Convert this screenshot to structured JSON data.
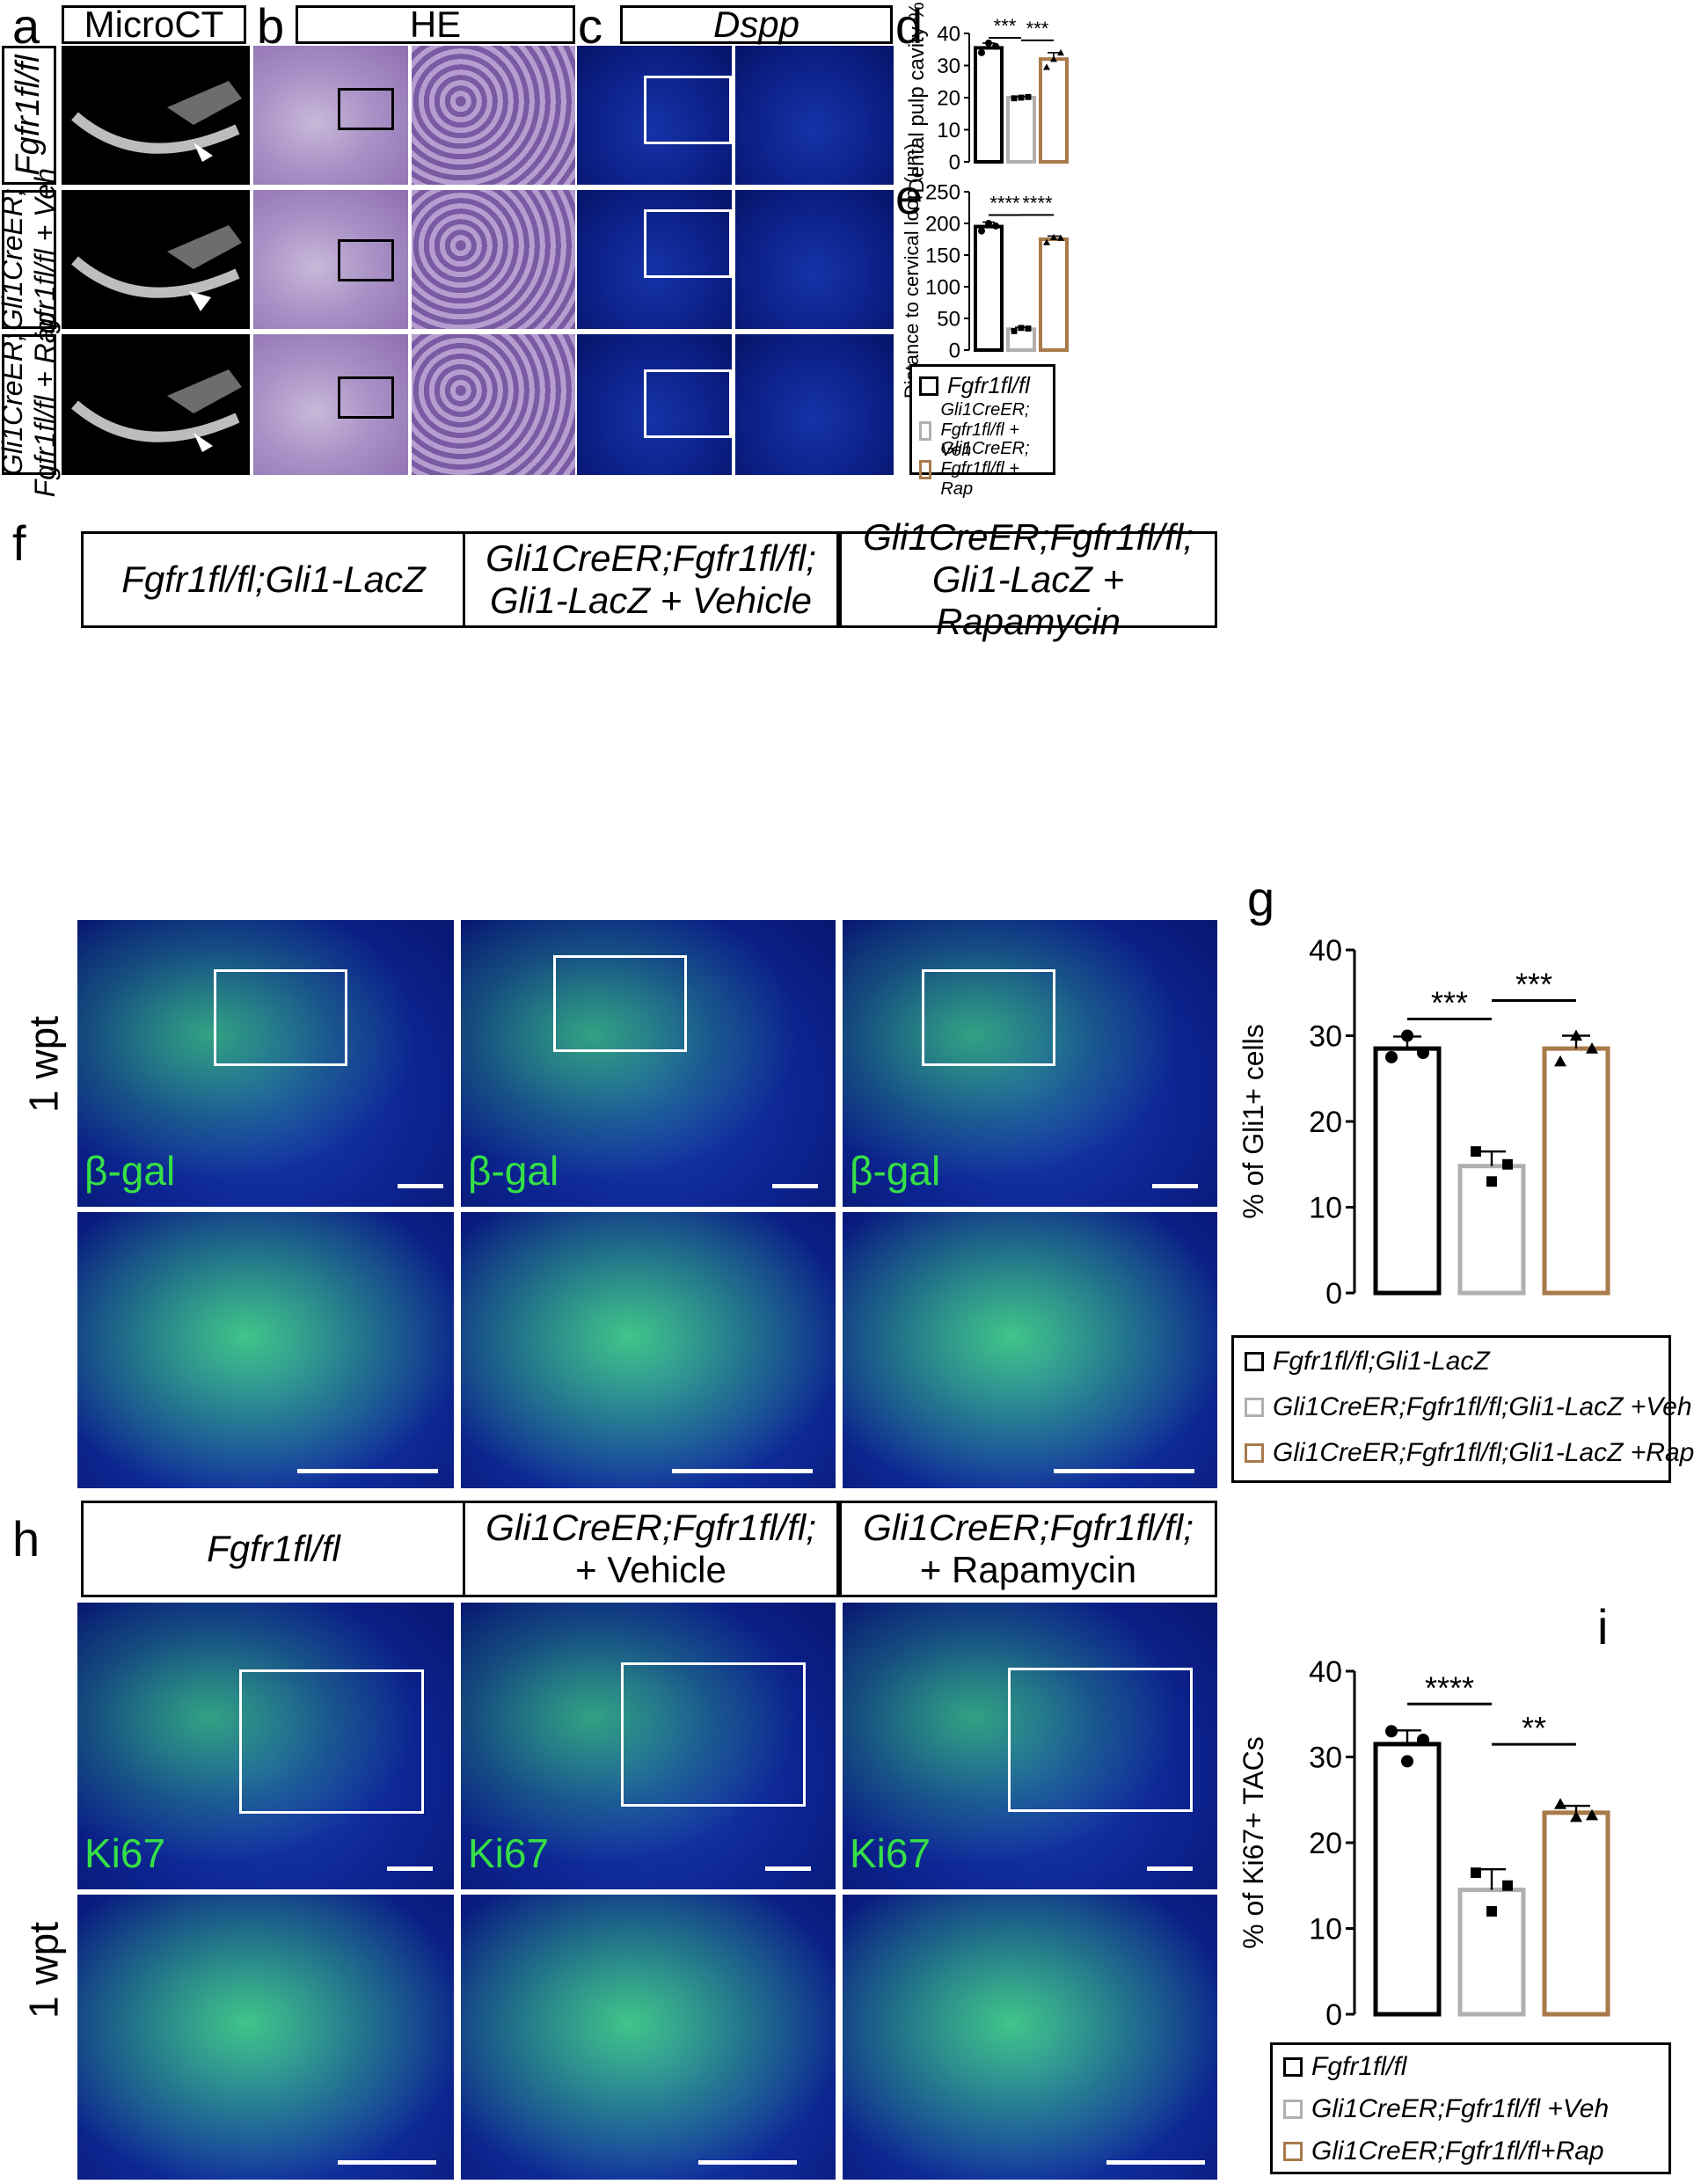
{
  "panels": {
    "a": "a",
    "b": "b",
    "c": "c",
    "d": "d",
    "e": "e",
    "f": "f",
    "g": "g",
    "h": "h",
    "i": "i"
  },
  "headers": {
    "microct": "MicroCT",
    "he": "HE",
    "dspp": "Dspp",
    "f1": "Fgfr1fl/fl;Gli1-LacZ",
    "f2_l1": "Gli1CreER;Fgfr1fl/fl;",
    "f2_l2": "Gli1-LacZ + Vehicle",
    "f3_l1": "Gli1CreER;Fgfr1fl/fl;",
    "f3_l2": "Gli1-LacZ + Rapamycin",
    "h1": "Fgfr1fl/fl",
    "h2_l1": "Gli1CreER;Fgfr1fl/fl;",
    "h2_l2": "+ Vehicle",
    "h3_l1": "Gli1CreER;Fgfr1fl/fl;",
    "h3_l2": "+ Rapamycin"
  },
  "row_labels": {
    "r1": "Fgfr1fl/fl",
    "r2_l1": "Gli1CreER;",
    "r2_l2": "Fgfr1fl/fl + Veh",
    "r3_l1": "Gli1CreER;",
    "r3_l2": "Fgfr1fl/fl + Rap",
    "wpt_f": "1 wpt",
    "wpt_h": "1 wpt"
  },
  "channels": {
    "bgal": "β-gal",
    "ki67": "Ki67"
  },
  "colors": {
    "control": "#000000",
    "veh": "#b0b0b0",
    "rap": "#a87a4a",
    "arrow_yellow": "#ffe500",
    "nuclear_green": "#35e046"
  },
  "legends": {
    "de": [
      "Fgfr1fl/fl",
      "Gli1CreER; Fgfr1fl/fl + Veh",
      "Gli1CreER; Fgfr1fl/fl + Rap"
    ],
    "g": [
      "Fgfr1fl/fl;Gli1-LacZ",
      "Gli1CreER;Fgfr1fl/fl;Gli1-LacZ +Veh",
      "Gli1CreER;Fgfr1fl/fl;Gli1-LacZ +Rap"
    ],
    "i": [
      "Fgfr1fl/fl",
      "Gli1CreER;Fgfr1fl/fl +Veh",
      "Gli1CreER;Fgfr1fl/fl+Rap"
    ]
  },
  "chart_data": [
    {
      "panel": "d",
      "type": "bar",
      "ylabel": "Dental pulp cavity %",
      "ylim": [
        0,
        40
      ],
      "yticks": [
        0,
        10,
        20,
        30,
        40
      ],
      "categories": [
        "Fgfr1fl/fl",
        "Gli1CreER; Fgfr1fl/fl + Veh",
        "Gli1CreER; Fgfr1fl/fl + Rap"
      ],
      "values": [
        35.5,
        20,
        32
      ],
      "errors": [
        1.5,
        0.4,
        2.0
      ],
      "points": [
        [
          34,
          37,
          36
        ],
        [
          19.8,
          20,
          20.2
        ],
        [
          29.5,
          32,
          34
        ]
      ],
      "significance": [
        "***",
        "***"
      ]
    },
    {
      "panel": "e",
      "type": "bar",
      "ylabel": "Distance to cervical loop (μm)",
      "ylim": [
        0,
        250
      ],
      "yticks": [
        0,
        50,
        100,
        150,
        200,
        250
      ],
      "categories": [
        "Fgfr1fl/fl",
        "Gli1CreER; Fgfr1fl/fl + Veh",
        "Gli1CreER; Fgfr1fl/fl + Rap"
      ],
      "values": [
        195,
        33,
        175
      ],
      "errors": [
        7,
        3,
        5
      ],
      "points": [
        [
          188,
          200,
          196
        ],
        [
          30,
          35,
          34
        ],
        [
          170,
          178,
          177
        ]
      ],
      "significance": [
        "****",
        "****"
      ]
    },
    {
      "panel": "g",
      "type": "bar",
      "ylabel": "% of Gli1+ cells",
      "ylim": [
        0,
        40
      ],
      "yticks": [
        0,
        10,
        20,
        30,
        40
      ],
      "categories": [
        "Fgfr1fl/fl;Gli1-LacZ",
        "Gli1CreER;Fgfr1fl/fl;Gli1-LacZ +Veh",
        "Gli1CreER;Fgfr1fl/fl;Gli1-LacZ +Rap"
      ],
      "values": [
        28.5,
        14.8,
        28.5
      ],
      "errors": [
        1.4,
        1.7,
        1.5
      ],
      "points": [
        [
          27.5,
          30,
          28
        ],
        [
          16.5,
          13,
          15
        ],
        [
          27,
          30,
          28.5
        ]
      ],
      "significance": [
        "***",
        "***"
      ]
    },
    {
      "panel": "i",
      "type": "bar",
      "ylabel": "% of Ki67+ TACs",
      "ylim": [
        0,
        40
      ],
      "yticks": [
        0,
        10,
        20,
        30,
        40
      ],
      "categories": [
        "Fgfr1fl/fl",
        "Gli1CreER;Fgfr1fl/fl +Veh",
        "Gli1CreER;Fgfr1fl/fl+Rap"
      ],
      "values": [
        31.5,
        14.5,
        23.5
      ],
      "errors": [
        1.6,
        2.4,
        0.8
      ],
      "points": [
        [
          33,
          29.5,
          32
        ],
        [
          16.5,
          12,
          15
        ],
        [
          24.5,
          23,
          23.2
        ]
      ],
      "significance": [
        "****",
        "**"
      ]
    }
  ]
}
